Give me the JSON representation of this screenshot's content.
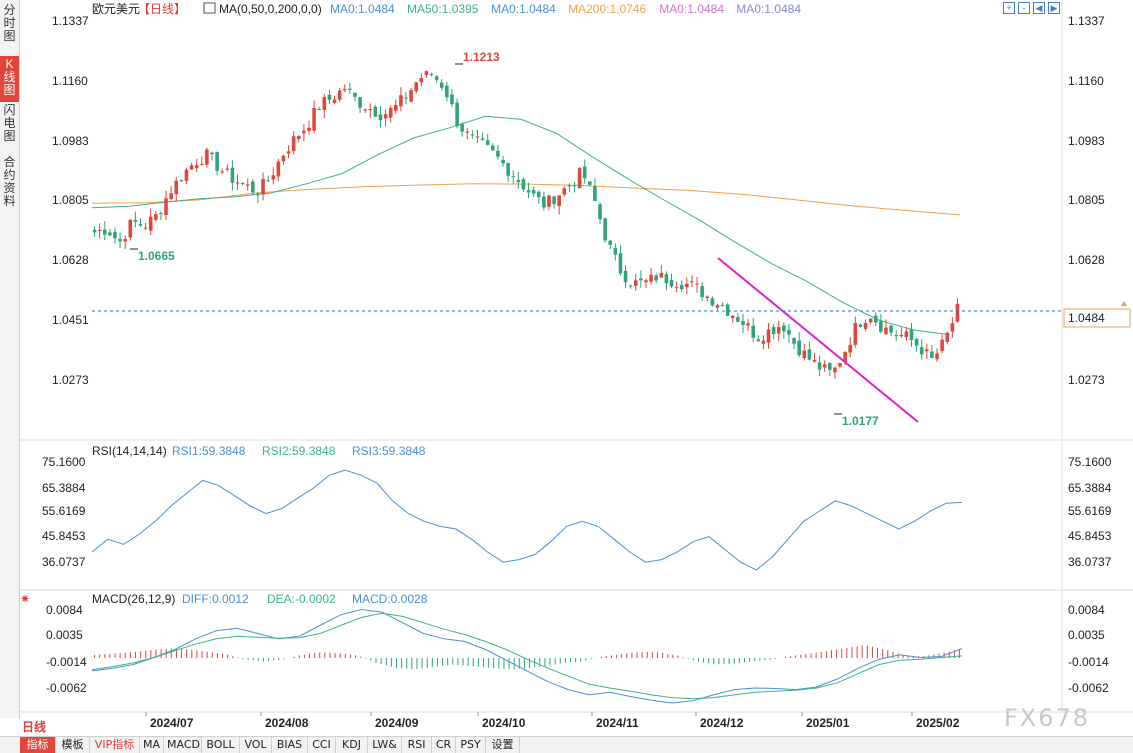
{
  "sidebar": {
    "items": [
      {
        "label": "分时图",
        "active": false
      },
      {
        "label": "K线图",
        "active": true
      },
      {
        "label": "闪电图",
        "active": false
      },
      {
        "label": "合约资料",
        "active": false
      }
    ]
  },
  "header": {
    "symbol": "欧元美元",
    "period": "【日线】",
    "ma_label": "MA(0,50,0,200,0,0)",
    "ma_values": [
      {
        "text": "MA0:1.0484",
        "color": "#4a90d9"
      },
      {
        "text": "MA50:1.0395",
        "color": "#3cb389"
      },
      {
        "text": "MA0:1.0484",
        "color": "#4a90d9"
      },
      {
        "text": "MA200:1.0746",
        "color": "#f0a050"
      },
      {
        "text": "MA0:1.0484",
        "color": "#d070d0"
      },
      {
        "text": "MA0:1.0484",
        "color": "#8888dd"
      }
    ]
  },
  "price_axis": {
    "ticks": [
      "1.1337",
      "1.1160",
      "1.0983",
      "1.0805",
      "1.0628",
      "1.0451",
      "1.0273"
    ],
    "current_price": "1.0484",
    "high_label": "1.1213",
    "low_label_1": "1.0665",
    "low_label_2": "1.0177"
  },
  "rsi": {
    "title": "RSI(14,14,14)",
    "values": [
      {
        "text": "RSI1:59.3848",
        "color": "#4a90d9"
      },
      {
        "text": "RSI2:59.3848",
        "color": "#3cb389"
      },
      {
        "text": "RSI3:59.3848",
        "color": "#4a90d9"
      }
    ],
    "ticks": [
      "75.1600",
      "65.3884",
      "55.6169",
      "45.8453",
      "36.0737"
    ]
  },
  "macd": {
    "title": "MACD(26,12,9)",
    "values": [
      {
        "text": "DIFF:0.0012",
        "color": "#4a90d9"
      },
      {
        "text": "DEA:-0.0002",
        "color": "#3cb389"
      },
      {
        "text": "MACD:0.0028",
        "color": "#4a90d9"
      }
    ],
    "ticks": [
      "0.0084",
      "0.0035",
      "-0.0014",
      "-0.0062"
    ]
  },
  "x_axis": {
    "labels": [
      "2024/07",
      "2024/08",
      "2024/09",
      "2024/10",
      "2024/11",
      "2024/12",
      "2025/01",
      "2025/02"
    ]
  },
  "period_label": "日线",
  "bottom_toolbar": [
    "指标",
    "模板",
    "VIP指标",
    "MA",
    "MACD",
    "BOLL",
    "VOL",
    "BIAS",
    "CCI",
    "KDJ",
    "LW&",
    "RSI",
    "CR",
    "PSY",
    "设置"
  ],
  "watermark": "FX678",
  "colors": {
    "up": "#e0463c",
    "down": "#2fa37a",
    "ma50": "#3cb389",
    "ma200": "#f0a050",
    "trendline": "#e020d0",
    "current_price": "#2a6fc0"
  },
  "chart_data": {
    "type": "candlestick",
    "x_range": [
      "2024/06",
      "2025/02"
    ],
    "ylim": [
      1.0177,
      1.1337
    ],
    "key_points": [
      {
        "x": "2024/06",
        "y": 1.0665,
        "label": "1.0665"
      },
      {
        "x": "2024/09",
        "y": 1.1213,
        "label": "1.1213"
      },
      {
        "x": "2025/01",
        "y": 1.0177,
        "label": "1.0177"
      }
    ],
    "closes_path": [
      1.071,
      1.072,
      1.068,
      1.074,
      1.073,
      1.076,
      1.083,
      1.088,
      1.092,
      1.094,
      1.09,
      1.087,
      1.085,
      1.083,
      1.087,
      1.094,
      1.099,
      1.103,
      1.109,
      1.111,
      1.114,
      1.11,
      1.108,
      1.106,
      1.108,
      1.112,
      1.117,
      1.118,
      1.114,
      1.104,
      1.099,
      1.097,
      1.094,
      1.09,
      1.086,
      1.082,
      1.079,
      1.082,
      1.085,
      1.089,
      1.08,
      1.068,
      1.06,
      1.056,
      1.056,
      1.058,
      1.057,
      1.056,
      1.055,
      1.052,
      1.05,
      1.047,
      1.044,
      1.04,
      1.042,
      1.044,
      1.038,
      1.034,
      1.031,
      1.029,
      1.036,
      1.044,
      1.047,
      1.043,
      1.041,
      1.04,
      1.037,
      1.033,
      1.039,
      1.048
    ],
    "ma50_path": [
      1.0782,
      1.0786,
      1.0798,
      1.0809,
      1.0815,
      1.0826,
      1.0854,
      1.0885,
      1.0942,
      1.0992,
      1.1022,
      1.1056,
      1.1047,
      1.1005,
      1.0935,
      1.0868,
      1.0805,
      1.0745,
      1.068,
      1.0618,
      1.0565,
      1.0503,
      1.0451,
      1.0421,
      1.0407
    ],
    "ma200_path": [
      1.0796,
      1.0797,
      1.0806,
      1.0826,
      1.0837,
      1.0845,
      1.085,
      1.0854,
      1.0853,
      1.0849,
      1.0841,
      1.0834,
      1.0822,
      1.0805,
      1.0788,
      1.0774,
      1.0761
    ],
    "rsi_path": [
      40,
      45,
      43,
      47,
      52,
      58,
      63,
      68,
      66,
      62,
      58,
      55,
      57,
      61,
      65,
      70,
      72,
      70,
      67,
      60,
      55,
      52,
      50,
      49,
      45,
      40,
      36,
      37,
      39,
      44,
      50,
      52,
      50,
      45,
      40,
      36,
      37,
      40,
      44,
      46,
      41,
      36,
      33,
      38,
      45,
      52,
      56,
      60,
      58,
      55,
      52,
      49,
      52,
      56,
      59,
      59.38
    ],
    "macd_diff_path": [
      -0.003,
      -0.0025,
      -0.0018,
      -0.0005,
      0.001,
      0.003,
      0.0045,
      0.005,
      0.004,
      0.003,
      0.0035,
      0.0055,
      0.0075,
      0.0085,
      0.008,
      0.006,
      0.004,
      0.003,
      0.0025,
      0.001,
      -0.001,
      -0.003,
      -0.005,
      -0.0065,
      -0.0075,
      -0.007,
      -0.0078,
      -0.0085,
      -0.009,
      -0.0086,
      -0.0075,
      -0.0065,
      -0.0062,
      -0.0063,
      -0.0065,
      -0.006,
      -0.0045,
      -0.0025,
      -0.0008,
      0.0,
      -0.0005,
      -0.0003,
      0.0012
    ],
    "macd_dea_path": [
      -0.0028,
      -0.0022,
      -0.0015,
      -0.0005,
      0.0008,
      0.002,
      0.003,
      0.0035,
      0.0033,
      0.0031,
      0.0032,
      0.004,
      0.0055,
      0.007,
      0.0078,
      0.0072,
      0.006,
      0.0048,
      0.0038,
      0.0025,
      0.001,
      -0.0008,
      -0.0025,
      -0.004,
      -0.0055,
      -0.0062,
      -0.0068,
      -0.0075,
      -0.008,
      -0.0082,
      -0.008,
      -0.0075,
      -0.007,
      -0.0068,
      -0.0066,
      -0.0062,
      -0.0052,
      -0.0035,
      -0.0018,
      -0.001,
      -0.0008,
      -0.0005,
      -0.0002
    ],
    "macd_hist_path": [
      0.001,
      0.0014,
      0.0018,
      0.0025,
      0.003,
      0.0028,
      0.002,
      0.0012,
      -0.0005,
      -0.001,
      -0.0005,
      0.001,
      0.0018,
      0.0016,
      0.0008,
      -0.0015,
      -0.003,
      -0.0035,
      -0.0028,
      -0.002,
      -0.0025,
      -0.003,
      -0.0035,
      -0.0032,
      -0.0025,
      -0.0015,
      -0.001,
      0.0005,
      0.0012,
      0.002,
      0.0018,
      0.0008,
      -0.001,
      -0.002,
      -0.0018,
      -0.001,
      -0.0005,
      0.0006,
      0.0014,
      0.0022,
      0.0032,
      0.004,
      0.0028,
      0.001,
      0.0005,
      0.0015,
      0.0028
    ]
  }
}
